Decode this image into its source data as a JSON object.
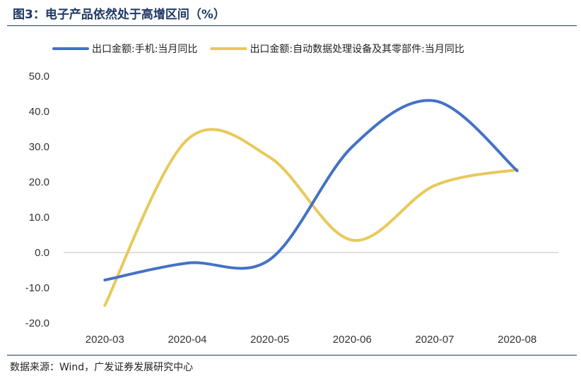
{
  "title": "图3：电子产品依然处于高增区间（%）",
  "source": "数据来源：Wind，广发证券发展研究中心",
  "colors": {
    "title": "#1F3864",
    "series1": "#4472C4",
    "series2": "#E8C95A",
    "zero_line": "#bfbfbf"
  },
  "chart_data": {
    "type": "line",
    "title": "图3：电子产品依然处于高增区间（%）",
    "xlabel": "",
    "ylabel": "",
    "categories": [
      "2020-03",
      "2020-04",
      "2020-05",
      "2020-06",
      "2020-07",
      "2020-08"
    ],
    "ylim": [
      -20,
      50
    ],
    "yticks": [
      "50.0",
      "40.0",
      "30.0",
      "20.0",
      "10.0",
      "0.0",
      "-10.0",
      "-20.0"
    ],
    "grid": false,
    "legend": "top",
    "smooth": true,
    "series": [
      {
        "name": "出口金额:手机:当月同比",
        "values": [
          -7.8,
          -3.0,
          -2.0,
          30.0,
          43.0,
          23.2
        ]
      },
      {
        "name": "出口金额:自动数据处理设备及其零部件:当月同比",
        "values": [
          -15.0,
          32.0,
          27.0,
          3.5,
          19.0,
          23.5
        ]
      }
    ]
  }
}
